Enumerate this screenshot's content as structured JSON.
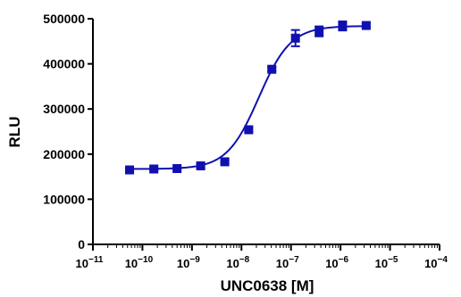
{
  "chart_data": {
    "type": "scatter",
    "xlabel": "UNC0638 [M]",
    "ylabel": "RLU",
    "x_scale": "log10",
    "xlim": [
      1e-11,
      0.0001
    ],
    "ylim": [
      0,
      500000
    ],
    "y_ticks": [
      0,
      100000,
      200000,
      300000,
      400000,
      500000
    ],
    "y_tick_labels": [
      "0",
      "100000",
      "200000",
      "300000",
      "400000",
      "500000"
    ],
    "x_tick_exponents": [
      "-11",
      "-10",
      "-9",
      "-8",
      "-7",
      "-6",
      "-5",
      "-4"
    ],
    "x_tick_base": "10",
    "grid": false,
    "legend": "none",
    "series": [
      {
        "marker": "square",
        "color": "#1010b0",
        "x": [
          5.5e-11,
          1.7e-10,
          5e-10,
          1.5e-09,
          4.6e-09,
          1.4e-08,
          4.1e-08,
          1.23e-07,
          3.7e-07,
          1.1e-06,
          3.3e-06
        ],
        "y": [
          165000,
          167000,
          168000,
          174000,
          183000,
          254000,
          388000,
          457000,
          472000,
          484000,
          485000
        ],
        "error": [
          3000,
          3000,
          3000,
          4000,
          3000,
          4000,
          5000,
          18000,
          11000,
          10000,
          4000
        ]
      }
    ],
    "fit_curve": {
      "model": "4PL",
      "bottom": 167000,
      "top": 484000,
      "log_ec50": -7.65,
      "hill_slope": 1.35,
      "color": "#1010b0"
    }
  }
}
